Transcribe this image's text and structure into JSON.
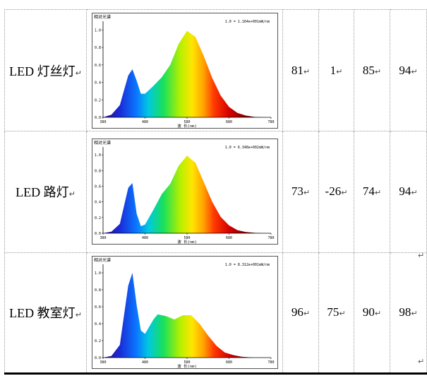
{
  "rows": [
    {
      "label": "LED 灯丝灯",
      "values": [
        "81",
        "1",
        "85",
        "94"
      ],
      "chart": {
        "title": "相对光谱",
        "note": "1.0 = 1.164e+001mW/nm",
        "xlabel": "波 长(nm)",
        "xticks": [
          "380",
          "480",
          "580",
          "680",
          "780"
        ],
        "yticks": [
          "0.0",
          "0.2",
          "0.4",
          "0.6",
          "0.8",
          "1.0"
        ]
      }
    },
    {
      "label": "LED 路灯",
      "values": [
        "73",
        "-26",
        "74",
        "94"
      ],
      "chart": {
        "title": "相对光谱",
        "note": "1.0 = 6.348e+002mW/nm",
        "xlabel": "波 长(nm)",
        "xticks": [
          "380",
          "480",
          "580",
          "680",
          "780"
        ],
        "yticks": [
          "0.0",
          "0.2",
          "0.4",
          "0.6",
          "0.8",
          "1.0"
        ]
      }
    },
    {
      "label": "LED 教室灯",
      "values": [
        "96",
        "75",
        "90",
        "98"
      ],
      "chart": {
        "title": "相对光谱",
        "note": "1.0 = 8.312e+001mW/nm",
        "xlabel": "波 长(nm)",
        "xticks": [
          "380",
          "480",
          "580",
          "680",
          "780"
        ],
        "yticks": [
          "0.0",
          "0.2",
          "0.4",
          "0.6",
          "0.8",
          "1.0"
        ]
      }
    }
  ],
  "mark": "↵",
  "chart_data": [
    {
      "type": "area",
      "title": "相对光谱",
      "xlabel": "波 长(nm)",
      "ylabel": "",
      "xlim": [
        380,
        780
      ],
      "ylim": [
        0,
        1.1
      ],
      "x": [
        380,
        400,
        420,
        440,
        450,
        460,
        470,
        480,
        500,
        520,
        540,
        560,
        580,
        600,
        620,
        640,
        660,
        680,
        700,
        720,
        740,
        760,
        780
      ],
      "y": [
        0.0,
        0.03,
        0.14,
        0.48,
        0.55,
        0.42,
        0.27,
        0.27,
        0.36,
        0.46,
        0.6,
        0.84,
        0.99,
        0.92,
        0.7,
        0.45,
        0.25,
        0.12,
        0.05,
        0.02,
        0.005,
        0.0,
        0.0
      ]
    },
    {
      "type": "area",
      "title": "相对光谱",
      "xlabel": "波 长(nm)",
      "ylabel": "",
      "xlim": [
        380,
        780
      ],
      "ylim": [
        0,
        1.1
      ],
      "x": [
        380,
        400,
        420,
        440,
        450,
        460,
        470,
        480,
        500,
        520,
        540,
        560,
        580,
        600,
        620,
        640,
        660,
        680,
        700,
        720,
        740,
        760,
        780
      ],
      "y": [
        0.0,
        0.02,
        0.12,
        0.58,
        0.64,
        0.25,
        0.09,
        0.11,
        0.3,
        0.5,
        0.63,
        0.86,
        0.99,
        0.9,
        0.65,
        0.4,
        0.21,
        0.1,
        0.04,
        0.015,
        0.005,
        0.0,
        0.0
      ]
    },
    {
      "type": "area",
      "title": "相对光谱",
      "xlabel": "波 长(nm)",
      "ylabel": "",
      "xlim": [
        380,
        780
      ],
      "ylim": [
        0,
        1.1
      ],
      "x": [
        380,
        400,
        420,
        440,
        450,
        460,
        470,
        480,
        500,
        510,
        530,
        550,
        570,
        590,
        610,
        630,
        650,
        670,
        690,
        710,
        740,
        760,
        780
      ],
      "y": [
        0.0,
        0.02,
        0.15,
        0.85,
        1.0,
        0.62,
        0.32,
        0.28,
        0.45,
        0.51,
        0.49,
        0.45,
        0.5,
        0.5,
        0.4,
        0.26,
        0.14,
        0.06,
        0.03,
        0.01,
        0.0,
        0.0,
        0.0
      ]
    }
  ]
}
